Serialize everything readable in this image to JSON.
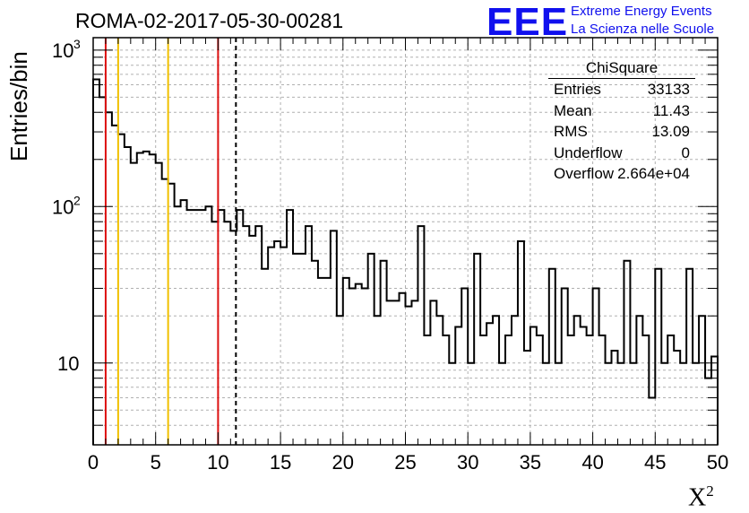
{
  "title": "ROMA-02-2017-05-30-00281",
  "logo": {
    "mark": "EEE",
    "line1": "Extreme Energy Events",
    "line2": "La Scienza nelle Scuole"
  },
  "stats": {
    "name": "ChiSquare",
    "rows": [
      {
        "label": "Entries",
        "value": "33133"
      },
      {
        "label": "Mean",
        "value": "11.43"
      },
      {
        "label": "RMS",
        "value": "13.09"
      },
      {
        "label": "Underflow",
        "value": "0"
      },
      {
        "label": "Overflow",
        "value": "2.664e+04"
      }
    ]
  },
  "colors": {
    "red_line": "#dd1111",
    "yellow_line": "#f0c000",
    "hist": "#000000"
  },
  "chart_data": {
    "type": "histogram",
    "xlabel": "X",
    "xlabel_sup": "2",
    "ylabel": "Entries/bin",
    "xlim": [
      0,
      50
    ],
    "ylim": [
      3,
      1200
    ],
    "yscale": "log",
    "grid": true,
    "bin_width": 0.5,
    "x_ticks": [
      "0",
      "5",
      "10",
      "15",
      "20",
      "25",
      "30",
      "35",
      "40",
      "45",
      "50"
    ],
    "y_ticks": [
      {
        "base": "10",
        "exp": "3",
        "value": 1000
      },
      {
        "base": "10",
        "exp": "2",
        "value": 100
      },
      {
        "base": "10",
        "exp": "",
        "value": 10
      }
    ],
    "values": [
      650,
      500,
      400,
      330,
      290,
      240,
      190,
      220,
      225,
      215,
      190,
      150,
      140,
      100,
      110,
      95,
      95,
      95,
      100,
      80,
      95,
      80,
      70,
      95,
      75,
      65,
      75,
      40,
      55,
      60,
      55,
      95,
      50,
      50,
      75,
      45,
      35,
      35,
      70,
      20,
      35,
      30,
      32,
      30,
      50,
      20,
      45,
      25,
      25,
      28,
      23,
      25,
      75,
      15,
      25,
      20,
      15,
      10,
      17,
      30,
      10,
      50,
      15,
      18,
      20,
      10,
      15,
      20,
      60,
      12,
      17,
      15,
      10,
      40,
      10,
      30,
      15,
      20,
      17,
      15,
      30,
      15,
      10,
      12,
      10,
      45,
      10,
      20,
      15,
      6,
      40,
      10,
      15,
      12,
      10,
      40,
      10,
      20,
      8,
      11
    ],
    "vlines": [
      {
        "x": 1,
        "color": "red",
        "style": "solid"
      },
      {
        "x": 2,
        "color": "yellow",
        "style": "solid"
      },
      {
        "x": 6,
        "color": "yellow",
        "style": "solid"
      },
      {
        "x": 10,
        "color": "red",
        "style": "solid"
      },
      {
        "x": 11.43,
        "color": "black",
        "style": "dashed"
      }
    ]
  }
}
